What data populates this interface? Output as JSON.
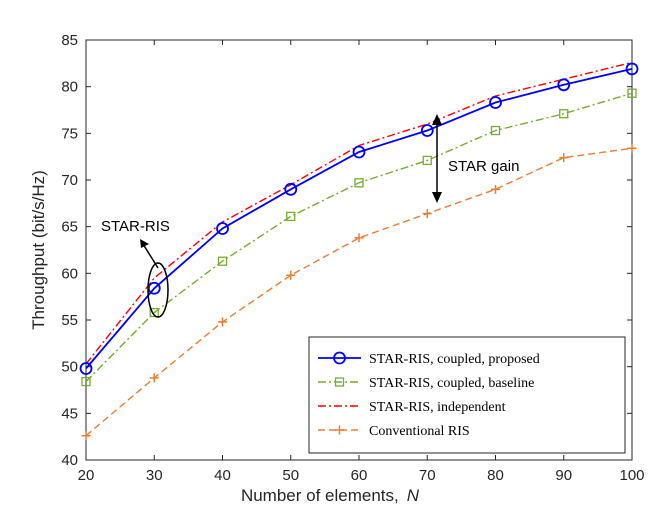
{
  "chart_data": {
    "type": "line",
    "title": "",
    "xlabel": "Number of elements,",
    "xlabel_symbol": "N",
    "ylabel": "Throughput (bit/s/Hz)",
    "xlim": [
      20,
      100
    ],
    "ylim": [
      40,
      85
    ],
    "x_ticks": [
      20,
      30,
      40,
      50,
      60,
      70,
      80,
      90,
      100
    ],
    "y_ticks": [
      40,
      45,
      50,
      55,
      60,
      65,
      70,
      75,
      80,
      85
    ],
    "grid": false,
    "legend_position": "bottom-right",
    "x": [
      20,
      30,
      40,
      50,
      60,
      70,
      80,
      90,
      100
    ],
    "series": [
      {
        "name": "STAR-RIS, coupled, proposed",
        "color": "#0000ff",
        "line": "solid",
        "marker": "circle",
        "values": [
          49.8,
          58.4,
          64.8,
          69.0,
          73.0,
          75.3,
          78.3,
          80.2,
          81.9
        ]
      },
      {
        "name": "STAR-RIS, coupled, baseline",
        "color": "#77ac30",
        "line": "dashdot",
        "marker": "square",
        "values": [
          48.4,
          55.8,
          61.3,
          66.1,
          69.7,
          72.1,
          75.3,
          77.1,
          79.3
        ]
      },
      {
        "name": "STAR-RIS, independent",
        "color": "#ff0000",
        "line": "dashdot",
        "marker": "none",
        "values": [
          50.3,
          59.5,
          65.5,
          69.5,
          73.7,
          76.0,
          79.0,
          80.8,
          82.6
        ]
      },
      {
        "name": "Conventional RIS",
        "color": "#ed7d31",
        "line": "dashed",
        "marker": "plus",
        "values": [
          42.6,
          48.8,
          54.8,
          59.8,
          63.8,
          66.4,
          69.0,
          72.4,
          73.4
        ]
      }
    ],
    "annotations": [
      {
        "text": "STAR-RIS"
      },
      {
        "text": "STAR gain"
      }
    ]
  }
}
